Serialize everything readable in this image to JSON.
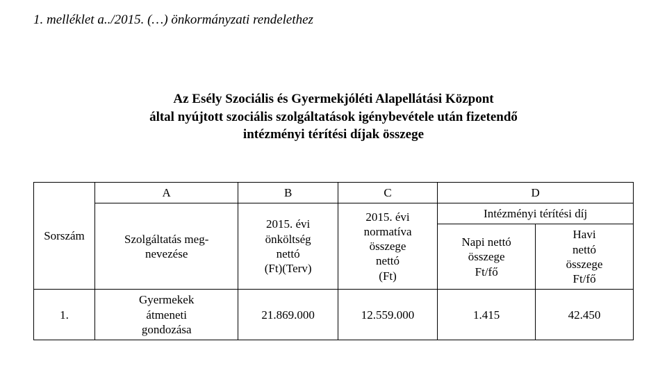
{
  "header_note": "1. melléklet a../2015. (…) önkormányzati rendelethez",
  "title_line1": "Az Esély Szociális és Gyermekjóléti Alapellátási Központ",
  "title_line2": "által nyújtott szociális szolgáltatások igénybevétele után fizetendő",
  "title_line3": "intézményi térítési díjak összege",
  "table": {
    "col_letters": [
      "A",
      "B",
      "C",
      "D"
    ],
    "h_sorszam": "Sorszám",
    "h_szolg": "Szolgáltatás meg-\nnevezése",
    "h_onkoltseg": "2015. évi\nönköltség\nnettó\n(Ft)(Terv)",
    "h_normativa": "2015. évi\nnormatíva\nösszege\nnettó\n(Ft)",
    "h_intezmenyi": "Intézményi térítési díj",
    "h_napi": "Napi nettó\nösszege\nFt/fő",
    "h_havi": "Havi\nnettó\nösszege\nFt/fő",
    "rows": [
      {
        "num": "1.",
        "name": "Gyermekek\nátmeneti\ngondozása",
        "onkoltseg": "21.869.000",
        "normativa": "12.559.000",
        "napi": "1.415",
        "havi": "42.450"
      }
    ]
  }
}
